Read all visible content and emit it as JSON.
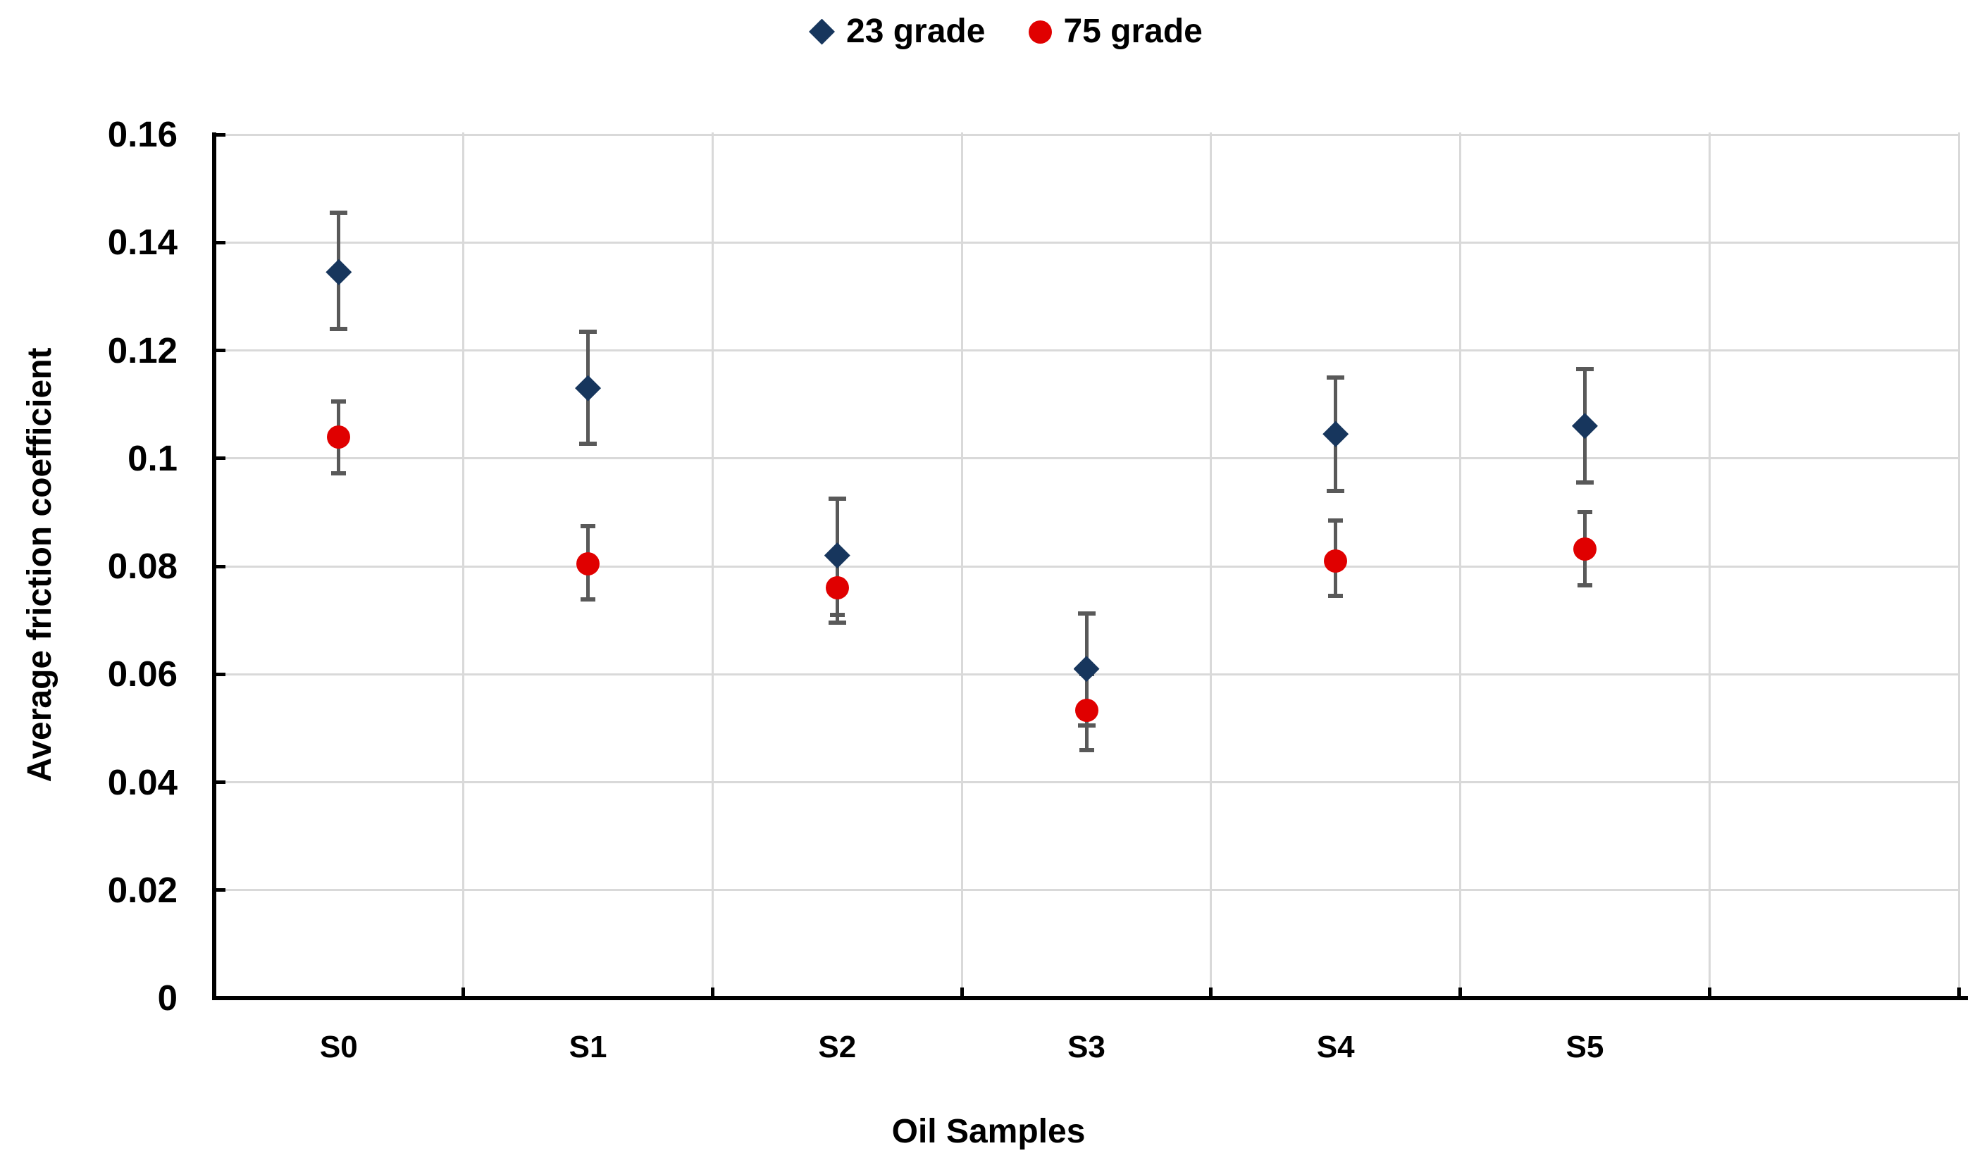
{
  "chart_data": {
    "type": "scatter",
    "title": "",
    "xlabel": "Oil Samples",
    "ylabel": "Average friction coefficient",
    "categories": [
      "S0",
      "S1",
      "S2",
      "S3",
      "S4",
      "S5"
    ],
    "x_columns_total": 7,
    "x_columns_note": "6 labeled sample columns plus 1 empty column at the right edge",
    "ylim": [
      0,
      0.16
    ],
    "y_tick_step": 0.02,
    "y_tick_labels": [
      "0",
      "0.02",
      "0.04",
      "0.06",
      "0.08",
      "0.1",
      "0.12",
      "0.14",
      "0.16"
    ],
    "grid": true,
    "legend_position": "top-center",
    "series": [
      {
        "name": "23 grade",
        "marker": "diamond",
        "color": "#17365d",
        "points": [
          {
            "x": "S0",
            "y": 0.1345,
            "err_up": 0.011,
            "err_down": 0.0105
          },
          {
            "x": "S1",
            "y": 0.113,
            "err_up": 0.0105,
            "err_down": 0.0103
          },
          {
            "x": "S2",
            "y": 0.082,
            "err_up": 0.0105,
            "err_down": 0.0125
          },
          {
            "x": "S3",
            "y": 0.061,
            "err_up": 0.0103,
            "err_down": 0.0105
          },
          {
            "x": "S4",
            "y": 0.1045,
            "err_up": 0.0105,
            "err_down": 0.0105
          },
          {
            "x": "S5",
            "y": 0.106,
            "err_up": 0.0105,
            "err_down": 0.0105
          }
        ]
      },
      {
        "name": "75 grade",
        "marker": "circle",
        "color": "#e00000",
        "points": [
          {
            "x": "S0",
            "y": 0.104,
            "err_up": 0.0065,
            "err_down": 0.0068
          },
          {
            "x": "S1",
            "y": 0.0805,
            "err_up": 0.007,
            "err_down": 0.0066
          },
          {
            "x": "S2",
            "y": 0.076,
            "err_up": 0.0055,
            "err_down": 0.005
          },
          {
            "x": "S3",
            "y": 0.0533,
            "err_up": 0.0067,
            "err_down": 0.0073
          },
          {
            "x": "S4",
            "y": 0.081,
            "err_up": 0.0075,
            "err_down": 0.0065
          },
          {
            "x": "S5",
            "y": 0.0832,
            "err_up": 0.0068,
            "err_down": 0.0067
          }
        ]
      }
    ],
    "error_bar_color": "#595959",
    "gridline_color": "#d9d9d9",
    "axis_color": "#000000",
    "background_color": "#ffffff"
  }
}
